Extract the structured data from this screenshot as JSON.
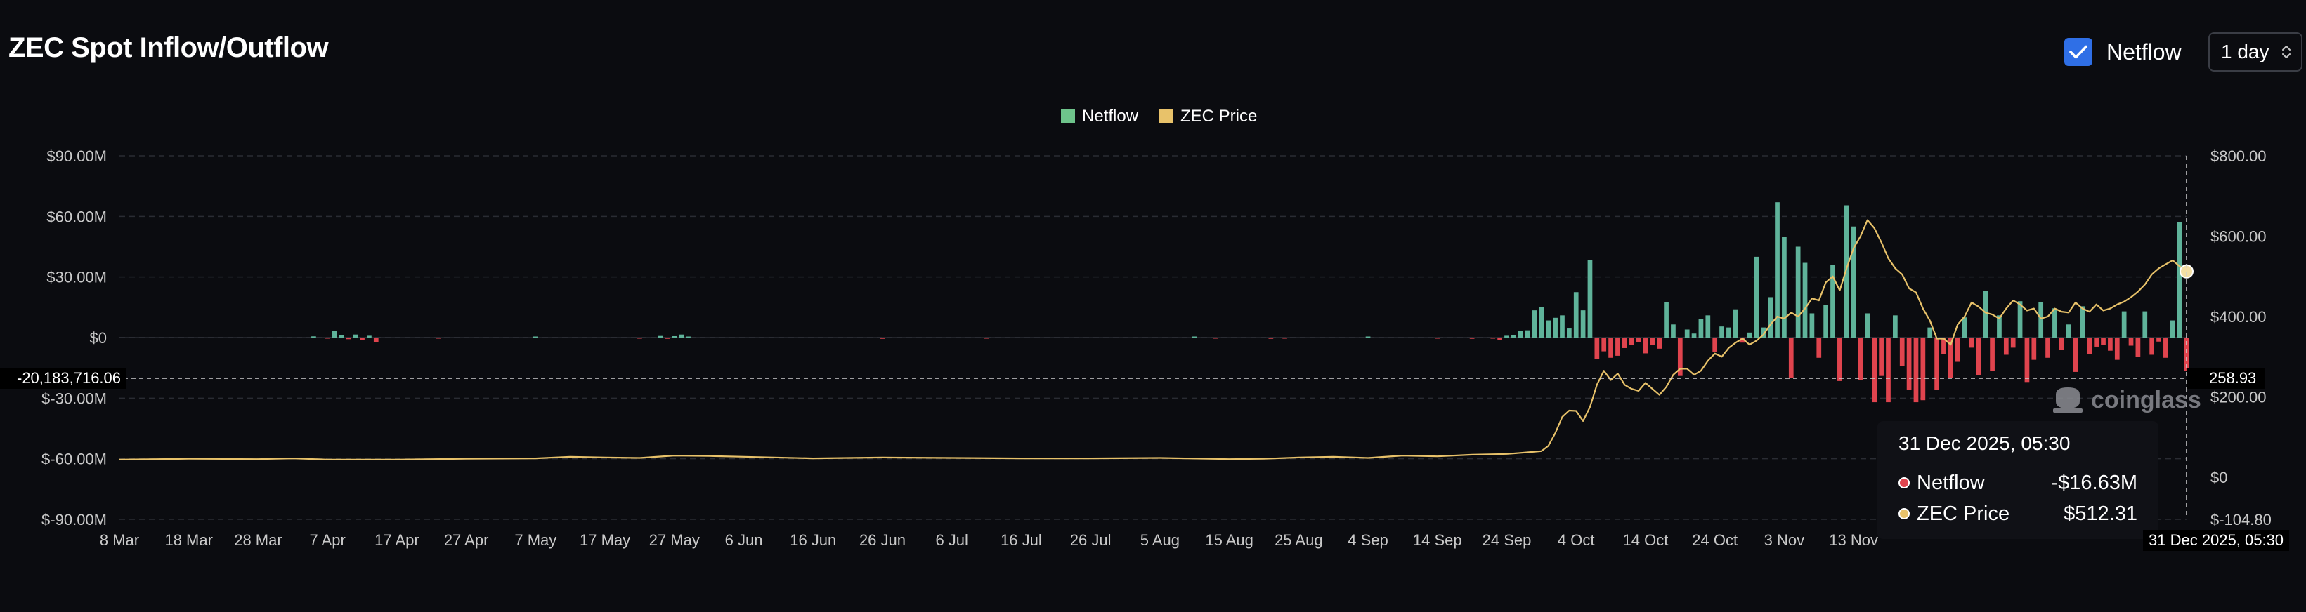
{
  "title": "ZEC Spot Inflow/Outflow",
  "controls": {
    "netflow_toggle": {
      "label": "Netflow",
      "checked": true
    },
    "interval": {
      "value": "1 day"
    }
  },
  "colors": {
    "netflow_positive": "#5fb39a",
    "netflow_negative": "#e0444e",
    "price_line": "#e8c26a",
    "checkbox": "#2f6fe6",
    "legend_netflow": "#6ec48b",
    "legend_price": "#e8c26a"
  },
  "watermark": "coinglass",
  "tooltip": {
    "title": "31 Dec 2025, 05:30",
    "rows": [
      {
        "label": "Netflow",
        "value": "-$16.63M"
      },
      {
        "label": "ZEC Price",
        "value": "$512.31"
      }
    ]
  },
  "crosshair": {
    "x_label": "31 Dec 2025, 05:30",
    "left_value": "-20,183,716.06",
    "right_value": "258.93"
  },
  "chart_data": {
    "type": "bar",
    "legend": [
      "Netflow",
      "ZEC Price"
    ],
    "legend_position": "top-center",
    "grid": true,
    "left_axis": {
      "ticks": [
        "$90.00M",
        "$60.00M",
        "$30.00M",
        "$0",
        "$-30.00M",
        "$-60.00M",
        "$-90.00M"
      ],
      "min": -90,
      "max": 90,
      "unit": "$M"
    },
    "right_axis": {
      "ticks": [
        "$800.00",
        "$600.00",
        "$400.00",
        "$200.00",
        "$0",
        "$-104.80"
      ],
      "min": -104.8,
      "max": 800
    },
    "x_ticks": [
      "8 Mar",
      "18 Mar",
      "28 Mar",
      "7 Apr",
      "17 Apr",
      "27 Apr",
      "7 May",
      "17 May",
      "27 May",
      "6 Jun",
      "16 Jun",
      "26 Jun",
      "6 Jul",
      "16 Jul",
      "26 Jul",
      "5 Aug",
      "15 Aug",
      "25 Aug",
      "4 Sep",
      "14 Sep",
      "24 Sep",
      "4 Oct",
      "14 Oct",
      "24 Oct",
      "3 Nov",
      "13 Nov"
    ],
    "x_tick_days": [
      0,
      10,
      20,
      30,
      40,
      50,
      60,
      70,
      80,
      90,
      100,
      110,
      120,
      130,
      140,
      150,
      160,
      170,
      180,
      190,
      200,
      210,
      220,
      230,
      240,
      250
    ],
    "last_day": 298,
    "series": [
      {
        "name": "Netflow",
        "kind": "bar",
        "unit": "$M",
        "values": [
          [
            28,
            0.6
          ],
          [
            30,
            -0.5
          ],
          [
            31,
            3.2
          ],
          [
            32,
            1.1
          ],
          [
            33,
            -0.8
          ],
          [
            34,
            1.5
          ],
          [
            35,
            -1.2
          ],
          [
            36,
            0.9
          ],
          [
            37,
            -2.1
          ],
          [
            46,
            -0.4
          ],
          [
            60,
            0.5
          ],
          [
            75,
            -0.3
          ],
          [
            78,
            0.8
          ],
          [
            79,
            -0.6
          ],
          [
            80,
            0.7
          ],
          [
            81,
            1.5
          ],
          [
            82,
            0.4
          ],
          [
            110,
            -0.6
          ],
          [
            125,
            -0.5
          ],
          [
            155,
            0.3
          ],
          [
            158,
            -0.4
          ],
          [
            166,
            -0.6
          ],
          [
            168,
            -0.5
          ],
          [
            180,
            0.4
          ],
          [
            190,
            -0.5
          ],
          [
            195,
            -0.6
          ],
          [
            198,
            -0.4
          ],
          [
            199,
            -1.2
          ],
          [
            200,
            0.9
          ],
          [
            201,
            1.2
          ],
          [
            202,
            3.2
          ],
          [
            203,
            3.6
          ],
          [
            204,
            13.5
          ],
          [
            205,
            15.0
          ],
          [
            206,
            8.5
          ],
          [
            207,
            9.8
          ],
          [
            208,
            11.0
          ],
          [
            209,
            4.5
          ],
          [
            210,
            22.5
          ],
          [
            211,
            13.5
          ],
          [
            212,
            38.5
          ],
          [
            213,
            -10.5
          ],
          [
            214,
            -6.8
          ],
          [
            215,
            -10.0
          ],
          [
            216,
            -9.0
          ],
          [
            217,
            -5.2
          ],
          [
            218,
            -3.5
          ],
          [
            219,
            -2.2
          ],
          [
            220,
            -7.8
          ],
          [
            221,
            -3.8
          ],
          [
            222,
            -5.5
          ],
          [
            223,
            17.5
          ],
          [
            224,
            6.5
          ],
          [
            225,
            -19.0
          ],
          [
            226,
            4.0
          ],
          [
            227,
            2.0
          ],
          [
            228,
            9.2
          ],
          [
            229,
            11.0
          ],
          [
            230,
            -7.0
          ],
          [
            231,
            5.5
          ],
          [
            232,
            5.0
          ],
          [
            233,
            14.0
          ],
          [
            234,
            -2.5
          ],
          [
            235,
            2.5
          ],
          [
            236,
            40.0
          ],
          [
            237,
            5.0
          ],
          [
            238,
            20.0
          ],
          [
            239,
            67.0
          ],
          [
            240,
            50.0
          ],
          [
            241,
            -20.0
          ],
          [
            242,
            45.0
          ],
          [
            243,
            37.0
          ],
          [
            244,
            12.0
          ],
          [
            245,
            -10.0
          ],
          [
            246,
            16.0
          ],
          [
            247,
            36.0
          ],
          [
            248,
            -21.5
          ],
          [
            249,
            65.5
          ],
          [
            250,
            55.0
          ],
          [
            251,
            -21.0
          ],
          [
            252,
            12.0
          ],
          [
            253,
            -32.0
          ],
          [
            254,
            -19.0
          ],
          [
            255,
            -32.0
          ],
          [
            256,
            11.0
          ],
          [
            257,
            -14.0
          ],
          [
            258,
            -26.0
          ],
          [
            259,
            -32.0
          ],
          [
            260,
            -31.0
          ],
          [
            261,
            5.0
          ],
          [
            262,
            -26.0
          ],
          [
            263,
            -8.0
          ],
          [
            264,
            -20.0
          ],
          [
            265,
            -12.0
          ],
          [
            266,
            10.0
          ],
          [
            267,
            -5.0
          ],
          [
            268,
            -18.5
          ],
          [
            269,
            23.0
          ],
          [
            270,
            -16.5
          ],
          [
            271,
            11.0
          ],
          [
            272,
            -8.5
          ],
          [
            273,
            -5.0
          ],
          [
            274,
            18.0
          ],
          [
            275,
            -22.0
          ],
          [
            276,
            -11.0
          ],
          [
            277,
            17.5
          ],
          [
            278,
            -10.0
          ],
          [
            279,
            14.5
          ],
          [
            280,
            -6.0
          ],
          [
            281,
            6.5
          ],
          [
            282,
            -17.0
          ],
          [
            283,
            15.5
          ],
          [
            284,
            -8.0
          ],
          [
            285,
            -4.5
          ],
          [
            286,
            -3.5
          ],
          [
            287,
            -6.5
          ],
          [
            288,
            -11.0
          ],
          [
            289,
            13.0
          ],
          [
            290,
            -4.0
          ],
          [
            291,
            -9.5
          ],
          [
            292,
            13.0
          ],
          [
            293,
            -8.5
          ],
          [
            294,
            -2.0
          ],
          [
            295,
            -10.0
          ],
          [
            296,
            8.5
          ],
          [
            297,
            57.0
          ],
          [
            298,
            -16.63
          ]
        ]
      },
      {
        "name": "ZEC Price",
        "kind": "line",
        "unit": "$",
        "points": [
          [
            0,
            44
          ],
          [
            10,
            46
          ],
          [
            20,
            45
          ],
          [
            25,
            47
          ],
          [
            30,
            44
          ],
          [
            40,
            44
          ],
          [
            50,
            46
          ],
          [
            60,
            47
          ],
          [
            65,
            51
          ],
          [
            70,
            49
          ],
          [
            75,
            48
          ],
          [
            80,
            54
          ],
          [
            85,
            53
          ],
          [
            90,
            51
          ],
          [
            100,
            47
          ],
          [
            110,
            49
          ],
          [
            120,
            48
          ],
          [
            130,
            47
          ],
          [
            140,
            47
          ],
          [
            150,
            48
          ],
          [
            160,
            45
          ],
          [
            165,
            46
          ],
          [
            170,
            49
          ],
          [
            175,
            51
          ],
          [
            180,
            48
          ],
          [
            185,
            54
          ],
          [
            190,
            52
          ],
          [
            195,
            56
          ],
          [
            200,
            58
          ],
          [
            203,
            62
          ],
          [
            205,
            65
          ],
          [
            206,
            78
          ],
          [
            207,
            110
          ],
          [
            208,
            150
          ],
          [
            209,
            166
          ],
          [
            210,
            165
          ],
          [
            211,
            140
          ],
          [
            212,
            175
          ],
          [
            213,
            230
          ],
          [
            214,
            265
          ],
          [
            215,
            242
          ],
          [
            216,
            258
          ],
          [
            217,
            230
          ],
          [
            218,
            220
          ],
          [
            219,
            215
          ],
          [
            220,
            235
          ],
          [
            221,
            220
          ],
          [
            222,
            205
          ],
          [
            223,
            225
          ],
          [
            224,
            255
          ],
          [
            225,
            270
          ],
          [
            226,
            270
          ],
          [
            227,
            255
          ],
          [
            228,
            265
          ],
          [
            229,
            290
          ],
          [
            230,
            308
          ],
          [
            231,
            300
          ],
          [
            232,
            322
          ],
          [
            233,
            335
          ],
          [
            234,
            345
          ],
          [
            235,
            330
          ],
          [
            236,
            340
          ],
          [
            237,
            355
          ],
          [
            238,
            380
          ],
          [
            239,
            400
          ],
          [
            240,
            395
          ],
          [
            241,
            410
          ],
          [
            242,
            400
          ],
          [
            243,
            420
          ],
          [
            244,
            445
          ],
          [
            245,
            440
          ],
          [
            246,
            485
          ],
          [
            247,
            500
          ],
          [
            248,
            465
          ],
          [
            249,
            520
          ],
          [
            250,
            570
          ],
          [
            251,
            600
          ],
          [
            252,
            640
          ],
          [
            253,
            620
          ],
          [
            254,
            585
          ],
          [
            255,
            545
          ],
          [
            256,
            520
          ],
          [
            257,
            505
          ],
          [
            258,
            470
          ],
          [
            259,
            460
          ],
          [
            260,
            420
          ],
          [
            261,
            390
          ],
          [
            262,
            345
          ],
          [
            263,
            345
          ],
          [
            264,
            330
          ],
          [
            265,
            380
          ],
          [
            266,
            400
          ],
          [
            267,
            435
          ],
          [
            268,
            425
          ],
          [
            269,
            410
          ],
          [
            270,
            405
          ],
          [
            271,
            395
          ],
          [
            272,
            420
          ],
          [
            273,
            440
          ],
          [
            274,
            430
          ],
          [
            275,
            415
          ],
          [
            276,
            420
          ],
          [
            277,
            395
          ],
          [
            278,
            400
          ],
          [
            279,
            420
          ],
          [
            280,
            412
          ],
          [
            281,
            410
          ],
          [
            282,
            435
          ],
          [
            283,
            420
          ],
          [
            284,
            412
          ],
          [
            285,
            430
          ],
          [
            286,
            415
          ],
          [
            287,
            420
          ],
          [
            288,
            430
          ],
          [
            289,
            437
          ],
          [
            290,
            448
          ],
          [
            291,
            462
          ],
          [
            292,
            480
          ],
          [
            293,
            505
          ],
          [
            294,
            520
          ],
          [
            295,
            530
          ],
          [
            296,
            540
          ],
          [
            297,
            525
          ],
          [
            298,
            512.31
          ]
        ]
      }
    ]
  }
}
